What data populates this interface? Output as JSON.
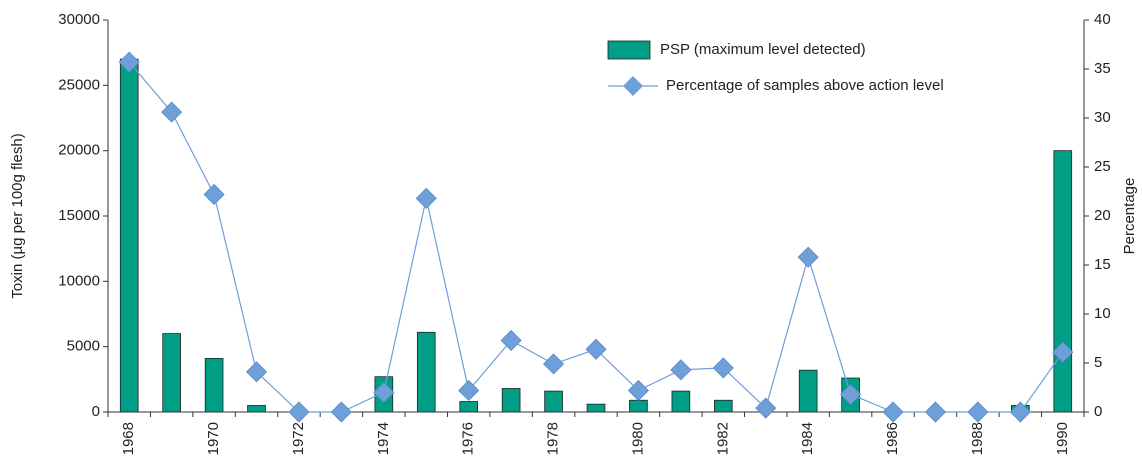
{
  "chart_data": {
    "type": "bar-line",
    "categories": [
      "1968",
      null,
      "1970",
      null,
      "1972",
      null,
      "1974",
      null,
      "1976",
      null,
      "1978",
      null,
      "1980",
      null,
      "1982",
      null,
      "1984",
      null,
      "1986",
      null,
      "1988",
      null,
      "1990"
    ],
    "series": [
      {
        "name": "PSP (maximum level detected)",
        "type": "bar",
        "color": "#009e85",
        "values": [
          27000,
          6000,
          4100,
          500,
          0,
          0,
          2700,
          6100,
          800,
          1800,
          1600,
          600,
          900,
          1600,
          900,
          0,
          3200,
          2600,
          0,
          0,
          0,
          500,
          20000
        ]
      },
      {
        "name": "Percentage of samples above action level",
        "type": "line",
        "axis": "y2",
        "color": "#6f9fd8",
        "values": [
          35.7,
          30.6,
          22.2,
          4.1,
          0,
          0,
          2.0,
          21.8,
          2.2,
          7.3,
          4.9,
          6.4,
          2.2,
          4.3,
          4.5,
          0.4,
          15.8,
          1.8,
          0,
          0,
          0,
          0,
          6.1
        ]
      }
    ],
    "y_label": "Toxin (µg per 100g flesh)",
    "y2_label": "Percentage",
    "ylim": [
      0,
      30000
    ],
    "yticks": [
      0,
      5000,
      10000,
      15000,
      20000,
      25000,
      30000
    ],
    "y2lim": [
      0,
      40
    ],
    "y2ticks": [
      0,
      5,
      10,
      15,
      20,
      25,
      30,
      35,
      40
    ],
    "legend": "upper right"
  }
}
